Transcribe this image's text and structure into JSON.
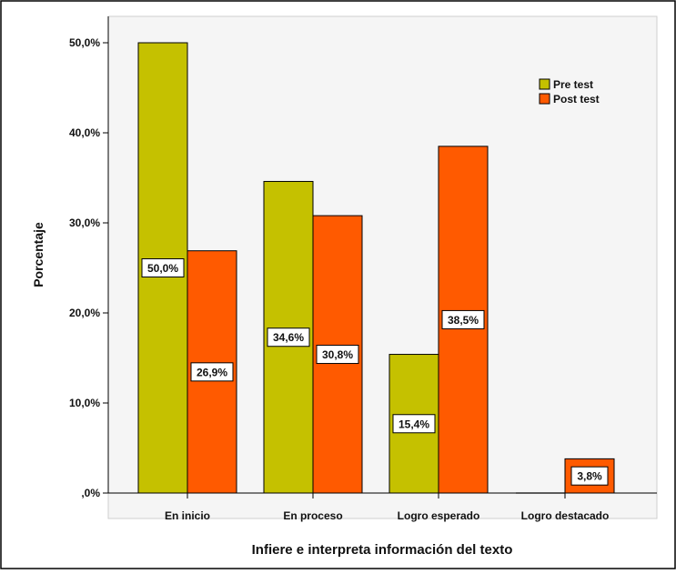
{
  "chart_data": {
    "type": "bar",
    "title": "",
    "xlabel": "Infiere e interpreta información del texto",
    "ylabel": "Porcentaje",
    "categories": [
      "En inicio",
      "En proceso",
      "Logro esperado",
      "Logro destacado"
    ],
    "series": [
      {
        "name": "Pre test",
        "color": "#c5c100",
        "values": [
          50.0,
          34.6,
          15.4,
          0.0
        ],
        "labels": [
          "50,0%",
          "34,6%",
          "15,4%",
          null
        ]
      },
      {
        "name": "Post test",
        "color": "#ff5a00",
        "values": [
          26.9,
          30.8,
          38.5,
          3.8
        ],
        "labels": [
          "26,9%",
          "30,8%",
          "38,5%",
          "3,8%"
        ]
      }
    ],
    "ylim": [
      0,
      50
    ],
    "yticks": [
      0,
      10,
      20,
      30,
      40,
      50
    ],
    "ytick_labels": [
      ",0%",
      "10,0%",
      "20,0%",
      "30,0%",
      "40,0%",
      "50,0%"
    ],
    "grid": false,
    "legend_position": "top-right",
    "plot_background": "#f5f5f5"
  }
}
